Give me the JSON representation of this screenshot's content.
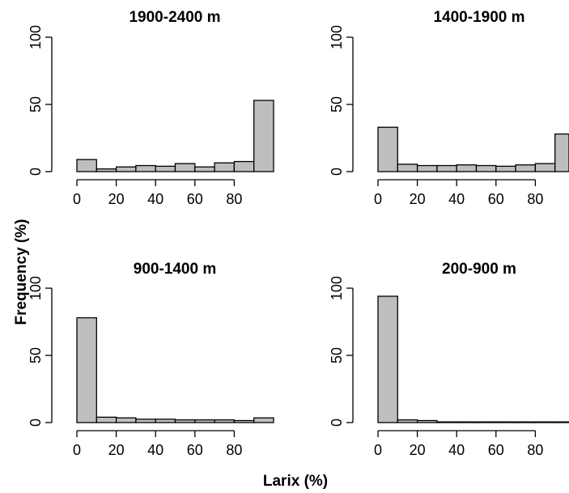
{
  "figure": {
    "xlabel": "Larix (%)",
    "ylabel": "Frequency (%)"
  },
  "colors": {
    "bar_fill": "#bebebe",
    "bar_stroke": "#000000"
  },
  "chart_data": [
    {
      "type": "bar",
      "title": "1900-2400 m",
      "bin_edges": [
        0,
        10,
        20,
        30,
        40,
        50,
        60,
        70,
        80,
        90,
        100
      ],
      "values": [
        9,
        2,
        3.5,
        4.5,
        4,
        6,
        3.5,
        6.5,
        7.5,
        53
      ],
      "xticks": [
        0,
        20,
        40,
        60,
        80
      ],
      "yticks": [
        0,
        50,
        100
      ],
      "ylim": [
        0,
        100
      ]
    },
    {
      "type": "bar",
      "title": "1400-1900 m",
      "bin_edges": [
        0,
        10,
        20,
        30,
        40,
        50,
        60,
        70,
        80,
        90,
        100
      ],
      "values": [
        33,
        5.5,
        4.5,
        4.5,
        5,
        4.5,
        4,
        5,
        6,
        28
      ],
      "xticks": [
        0,
        20,
        40,
        60,
        80
      ],
      "yticks": [
        0,
        50,
        100
      ],
      "ylim": [
        0,
        100
      ]
    },
    {
      "type": "bar",
      "title": "900-1400 m",
      "bin_edges": [
        0,
        10,
        20,
        30,
        40,
        50,
        60,
        70,
        80,
        90,
        100
      ],
      "values": [
        78,
        4,
        3.5,
        2.5,
        2.5,
        2,
        2,
        2,
        1.5,
        3.5
      ],
      "xticks": [
        0,
        20,
        40,
        60,
        80
      ],
      "yticks": [
        0,
        50,
        100
      ],
      "ylim": [
        0,
        100
      ]
    },
    {
      "type": "bar",
      "title": "200-900 m",
      "bin_edges": [
        0,
        10,
        20,
        30,
        40,
        50,
        60,
        70,
        80,
        90,
        100
      ],
      "values": [
        94,
        2,
        1.5,
        0.5,
        0.5,
        0.5,
        0.5,
        0.5,
        0.5,
        0.5
      ],
      "xticks": [
        0,
        20,
        40,
        60,
        80
      ],
      "yticks": [
        0,
        50,
        100
      ],
      "ylim": [
        0,
        100
      ]
    }
  ]
}
